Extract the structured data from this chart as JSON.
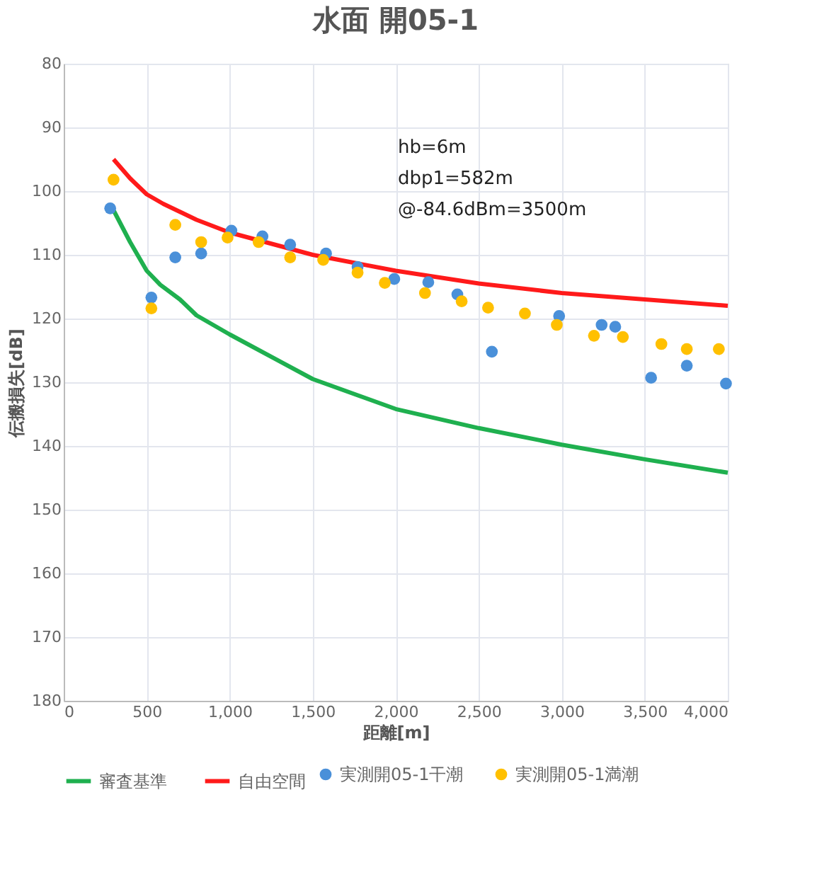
{
  "chart_data": {
    "type": "line",
    "title": "水面 開05-1",
    "xlabel": "距離[m]",
    "ylabel": "伝搬損失[dB]",
    "annotations": [
      "hb=6m",
      "dbp1=582m",
      "@-84.6dBm=3500m"
    ],
    "xlim": [
      0,
      4000
    ],
    "ylim": [
      180,
      80
    ],
    "xticks": [
      0,
      500,
      {
        "value": 1000,
        "label": "1,000"
      },
      {
        "value": 1500,
        "label": "1,500"
      },
      {
        "value": 2000,
        "label": "2,000"
      },
      {
        "value": 2500,
        "label": "2,500"
      },
      {
        "value": 3000,
        "label": "3,000"
      },
      {
        "value": 3500,
        "label": "3,500"
      },
      {
        "value": 4000,
        "label": "4,000"
      }
    ],
    "yticks": [
      80,
      90,
      100,
      110,
      120,
      130,
      140,
      150,
      160,
      170,
      180
    ],
    "grid": true,
    "legend": "bottom",
    "line_style": "solid",
    "series": [
      {
        "name": "審査基準",
        "type": "line",
        "color": "#1fb04f",
        "x": [
          300,
          400,
          500,
          582,
          700,
          800,
          1000,
          1500,
          2000,
          2500,
          3000,
          3500,
          4000
        ],
        "values": [
          103,
          108,
          112.5,
          114.7,
          117,
          119.5,
          122.5,
          129.5,
          134.2,
          137.2,
          139.8,
          142.1,
          144.2
        ]
      },
      {
        "name": "自由空間",
        "type": "line",
        "color": "#ff1a1a",
        "x": [
          300,
          400,
          500,
          600,
          800,
          1000,
          1500,
          2000,
          2500,
          3000,
          3500,
          4000
        ],
        "values": [
          95,
          98,
          100.5,
          102,
          104.5,
          106.5,
          110,
          112.5,
          114.5,
          116,
          117,
          118
        ]
      },
      {
        "name": "実測開05-1干潮",
        "type": "scatter",
        "marker": "circle",
        "color": "#4a90d9",
        "x": [
          280,
          528,
          672,
          828,
          1010,
          1197,
          1364,
          1580,
          1770,
          1991,
          2196,
          2371,
          2579,
          2984,
          3240,
          3322,
          3538,
          3753,
          3989
        ],
        "values": [
          102.7,
          116.7,
          110.4,
          109.8,
          106.2,
          107.1,
          108.4,
          109.8,
          111.9,
          113.8,
          114.3,
          116.2,
          125.2,
          119.6,
          121,
          121.3,
          129.3,
          127.4,
          130.2
        ]
      },
      {
        "name": "実測開05-1満潮",
        "type": "scatter",
        "marker": "circle",
        "color": "#ffc000",
        "x": [
          300,
          528,
          672,
          828,
          987,
          1174,
          1364,
          1563,
          1770,
          1934,
          2176,
          2397,
          2556,
          2778,
          2970,
          3194,
          3368,
          3600,
          3753,
          3946
        ],
        "values": [
          98.2,
          118.4,
          105.3,
          108,
          107.3,
          108,
          110.4,
          110.8,
          112.8,
          114.4,
          116,
          117.3,
          118.3,
          119.2,
          121,
          122.7,
          122.9,
          124,
          124.8,
          124.8
        ]
      }
    ]
  }
}
